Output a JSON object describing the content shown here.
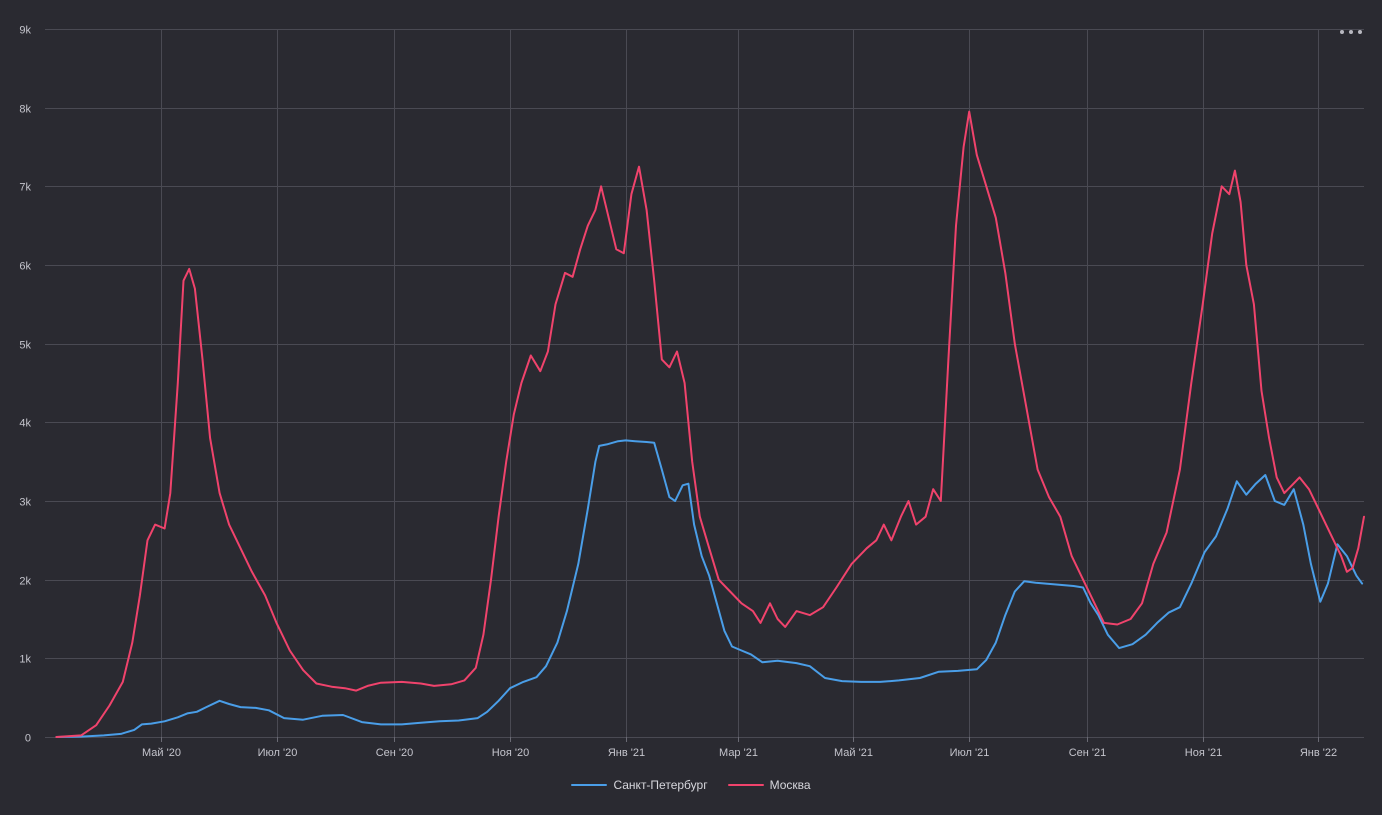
{
  "menu": {
    "icon": "more-horizontal-icon"
  },
  "chart_data": {
    "type": "line",
    "title": "",
    "xlabel": "",
    "ylabel": "",
    "ylim": [
      0,
      9000
    ],
    "yticks": [
      0,
      1000,
      2000,
      3000,
      4000,
      5000,
      6000,
      7000,
      8000,
      9000
    ],
    "ytick_labels": [
      "0",
      "1k",
      "2k",
      "3k",
      "4k",
      "5k",
      "6k",
      "7k",
      "8k",
      "9k"
    ],
    "xlim": [
      "2020-03-01",
      "2022-01-25"
    ],
    "xticks": [
      {
        "date": "2020-05-01",
        "label": "Май '20"
      },
      {
        "date": "2020-07-01",
        "label": "Июл '20"
      },
      {
        "date": "2020-09-01",
        "label": "Сен '20"
      },
      {
        "date": "2020-11-01",
        "label": "Ноя '20"
      },
      {
        "date": "2021-01-01",
        "label": "Янв '21"
      },
      {
        "date": "2021-03-01",
        "label": "Мар '21"
      },
      {
        "date": "2021-05-01",
        "label": "Май '21"
      },
      {
        "date": "2021-07-01",
        "label": "Июл '21"
      },
      {
        "date": "2021-09-01",
        "label": "Сен '21"
      },
      {
        "date": "2021-11-01",
        "label": "Ноя '21"
      },
      {
        "date": "2022-01-01",
        "label": "Янв '22"
      }
    ],
    "grid": true,
    "legend_position": "bottom-center",
    "series": [
      {
        "name": "Санкт-Петербург",
        "color": "#4a9ee8",
        "points": [
          [
            "2020-03-07",
            0
          ],
          [
            "2020-03-20",
            5
          ],
          [
            "2020-04-01",
            20
          ],
          [
            "2020-04-10",
            40
          ],
          [
            "2020-04-17",
            90
          ],
          [
            "2020-04-21",
            160
          ],
          [
            "2020-04-26",
            170
          ],
          [
            "2020-05-03",
            200
          ],
          [
            "2020-05-10",
            250
          ],
          [
            "2020-05-15",
            300
          ],
          [
            "2020-05-20",
            320
          ],
          [
            "2020-05-25",
            380
          ],
          [
            "2020-06-01",
            460
          ],
          [
            "2020-06-06",
            420
          ],
          [
            "2020-06-12",
            380
          ],
          [
            "2020-06-20",
            370
          ],
          [
            "2020-06-27",
            340
          ],
          [
            "2020-07-05",
            240
          ],
          [
            "2020-07-15",
            220
          ],
          [
            "2020-07-25",
            270
          ],
          [
            "2020-08-05",
            280
          ],
          [
            "2020-08-15",
            190
          ],
          [
            "2020-08-25",
            160
          ],
          [
            "2020-09-05",
            160
          ],
          [
            "2020-09-15",
            180
          ],
          [
            "2020-09-25",
            200
          ],
          [
            "2020-10-05",
            210
          ],
          [
            "2020-10-15",
            240
          ],
          [
            "2020-10-20",
            320
          ],
          [
            "2020-10-26",
            460
          ],
          [
            "2020-11-01",
            620
          ],
          [
            "2020-11-08",
            700
          ],
          [
            "2020-11-15",
            760
          ],
          [
            "2020-11-20",
            900
          ],
          [
            "2020-11-26",
            1200
          ],
          [
            "2020-12-01",
            1600
          ],
          [
            "2020-12-07",
            2200
          ],
          [
            "2020-12-12",
            2900
          ],
          [
            "2020-12-16",
            3500
          ],
          [
            "2020-12-18",
            3700
          ],
          [
            "2020-12-22",
            3720
          ],
          [
            "2020-12-28",
            3760
          ],
          [
            "2021-01-01",
            3770
          ],
          [
            "2021-01-06",
            3760
          ],
          [
            "2021-01-12",
            3750
          ],
          [
            "2021-01-16",
            3740
          ],
          [
            "2021-01-20",
            3400
          ],
          [
            "2021-01-24",
            3050
          ],
          [
            "2021-01-27",
            3000
          ],
          [
            "2021-01-31",
            3200
          ],
          [
            "2021-02-03",
            3220
          ],
          [
            "2021-02-06",
            2700
          ],
          [
            "2021-02-10",
            2300
          ],
          [
            "2021-02-14",
            2050
          ],
          [
            "2021-02-18",
            1700
          ],
          [
            "2021-02-22",
            1350
          ],
          [
            "2021-02-26",
            1150
          ],
          [
            "2021-03-03",
            1100
          ],
          [
            "2021-03-08",
            1050
          ],
          [
            "2021-03-14",
            950
          ],
          [
            "2021-03-22",
            970
          ],
          [
            "2021-04-01",
            940
          ],
          [
            "2021-04-08",
            900
          ],
          [
            "2021-04-16",
            750
          ],
          [
            "2021-04-25",
            710
          ],
          [
            "2021-05-05",
            700
          ],
          [
            "2021-05-15",
            700
          ],
          [
            "2021-05-25",
            720
          ],
          [
            "2021-06-05",
            750
          ],
          [
            "2021-06-15",
            830
          ],
          [
            "2021-06-25",
            840
          ],
          [
            "2021-07-05",
            860
          ],
          [
            "2021-07-10",
            980
          ],
          [
            "2021-07-15",
            1200
          ],
          [
            "2021-07-20",
            1550
          ],
          [
            "2021-07-25",
            1850
          ],
          [
            "2021-07-30",
            1980
          ],
          [
            "2021-08-05",
            1960
          ],
          [
            "2021-08-15",
            1940
          ],
          [
            "2021-08-25",
            1920
          ],
          [
            "2021-08-30",
            1900
          ],
          [
            "2021-09-03",
            1700
          ],
          [
            "2021-09-07",
            1550
          ],
          [
            "2021-09-12",
            1300
          ],
          [
            "2021-09-18",
            1130
          ],
          [
            "2021-09-25",
            1180
          ],
          [
            "2021-10-02",
            1300
          ],
          [
            "2021-10-08",
            1450
          ],
          [
            "2021-10-14",
            1580
          ],
          [
            "2021-10-20",
            1650
          ],
          [
            "2021-10-26",
            1950
          ],
          [
            "2021-11-02",
            2350
          ],
          [
            "2021-11-08",
            2550
          ],
          [
            "2021-11-14",
            2900
          ],
          [
            "2021-11-19",
            3250
          ],
          [
            "2021-11-24",
            3080
          ],
          [
            "2021-11-29",
            3220
          ],
          [
            "2021-12-04",
            3330
          ],
          [
            "2021-12-09",
            3000
          ],
          [
            "2021-12-14",
            2950
          ],
          [
            "2021-12-19",
            3150
          ],
          [
            "2021-12-24",
            2700
          ],
          [
            "2021-12-28",
            2200
          ],
          [
            "2022-01-02",
            1720
          ],
          [
            "2022-01-06",
            1950
          ],
          [
            "2022-01-11",
            2450
          ],
          [
            "2022-01-16",
            2300
          ],
          [
            "2022-01-21",
            2050
          ],
          [
            "2022-01-24",
            1950
          ]
        ]
      },
      {
        "name": "Москва",
        "color": "#f0436c",
        "points": [
          [
            "2020-03-07",
            0
          ],
          [
            "2020-03-20",
            20
          ],
          [
            "2020-03-28",
            150
          ],
          [
            "2020-04-04",
            400
          ],
          [
            "2020-04-11",
            700
          ],
          [
            "2020-04-16",
            1200
          ],
          [
            "2020-04-20",
            1800
          ],
          [
            "2020-04-24",
            2500
          ],
          [
            "2020-04-28",
            2700
          ],
          [
            "2020-05-03",
            2650
          ],
          [
            "2020-05-06",
            3100
          ],
          [
            "2020-05-10",
            4500
          ],
          [
            "2020-05-13",
            5800
          ],
          [
            "2020-05-16",
            5950
          ],
          [
            "2020-05-19",
            5700
          ],
          [
            "2020-05-23",
            4800
          ],
          [
            "2020-05-27",
            3800
          ],
          [
            "2020-06-01",
            3100
          ],
          [
            "2020-06-06",
            2700
          ],
          [
            "2020-06-12",
            2400
          ],
          [
            "2020-06-18",
            2100
          ],
          [
            "2020-06-25",
            1800
          ],
          [
            "2020-07-01",
            1450
          ],
          [
            "2020-07-08",
            1100
          ],
          [
            "2020-07-15",
            850
          ],
          [
            "2020-07-22",
            680
          ],
          [
            "2020-07-30",
            640
          ],
          [
            "2020-08-06",
            620
          ],
          [
            "2020-08-12",
            590
          ],
          [
            "2020-08-18",
            650
          ],
          [
            "2020-08-25",
            690
          ],
          [
            "2020-09-05",
            700
          ],
          [
            "2020-09-15",
            680
          ],
          [
            "2020-09-22",
            650
          ],
          [
            "2020-10-01",
            670
          ],
          [
            "2020-10-08",
            720
          ],
          [
            "2020-10-14",
            880
          ],
          [
            "2020-10-18",
            1300
          ],
          [
            "2020-10-22",
            2000
          ],
          [
            "2020-10-26",
            2800
          ],
          [
            "2020-10-30",
            3500
          ],
          [
            "2020-11-03",
            4100
          ],
          [
            "2020-11-07",
            4500
          ],
          [
            "2020-11-12",
            4850
          ],
          [
            "2020-11-17",
            4650
          ],
          [
            "2020-11-21",
            4900
          ],
          [
            "2020-11-25",
            5500
          ],
          [
            "2020-11-30",
            5900
          ],
          [
            "2020-12-04",
            5850
          ],
          [
            "2020-12-08",
            6200
          ],
          [
            "2020-12-12",
            6500
          ],
          [
            "2020-12-16",
            6700
          ],
          [
            "2020-12-19",
            7000
          ],
          [
            "2020-12-23",
            6600
          ],
          [
            "2020-12-27",
            6200
          ],
          [
            "2020-12-31",
            6150
          ],
          [
            "2021-01-04",
            6900
          ],
          [
            "2021-01-08",
            7250
          ],
          [
            "2021-01-12",
            6700
          ],
          [
            "2021-01-16",
            5800
          ],
          [
            "2021-01-20",
            4800
          ],
          [
            "2021-01-24",
            4700
          ],
          [
            "2021-01-28",
            4900
          ],
          [
            "2021-02-01",
            4500
          ],
          [
            "2021-02-05",
            3500
          ],
          [
            "2021-02-09",
            2800
          ],
          [
            "2021-02-14",
            2400
          ],
          [
            "2021-02-19",
            2000
          ],
          [
            "2021-02-25",
            1850
          ],
          [
            "2021-03-03",
            1700
          ],
          [
            "2021-03-09",
            1600
          ],
          [
            "2021-03-13",
            1450
          ],
          [
            "2021-03-18",
            1700
          ],
          [
            "2021-03-22",
            1500
          ],
          [
            "2021-03-26",
            1400
          ],
          [
            "2021-04-01",
            1600
          ],
          [
            "2021-04-08",
            1550
          ],
          [
            "2021-04-15",
            1650
          ],
          [
            "2021-04-22",
            1900
          ],
          [
            "2021-04-30",
            2200
          ],
          [
            "2021-05-08",
            2400
          ],
          [
            "2021-05-13",
            2500
          ],
          [
            "2021-05-17",
            2700
          ],
          [
            "2021-05-21",
            2500
          ],
          [
            "2021-05-26",
            2800
          ],
          [
            "2021-05-30",
            3000
          ],
          [
            "2021-06-03",
            2700
          ],
          [
            "2021-06-08",
            2800
          ],
          [
            "2021-06-12",
            3150
          ],
          [
            "2021-06-16",
            3000
          ],
          [
            "2021-06-20",
            4800
          ],
          [
            "2021-06-24",
            6500
          ],
          [
            "2021-06-28",
            7500
          ],
          [
            "2021-07-01",
            7950
          ],
          [
            "2021-07-05",
            7400
          ],
          [
            "2021-07-10",
            7000
          ],
          [
            "2021-07-15",
            6600
          ],
          [
            "2021-07-20",
            5900
          ],
          [
            "2021-07-25",
            5000
          ],
          [
            "2021-07-31",
            4200
          ],
          [
            "2021-08-06",
            3400
          ],
          [
            "2021-08-12",
            3050
          ],
          [
            "2021-08-18",
            2800
          ],
          [
            "2021-08-24",
            2300
          ],
          [
            "2021-08-30",
            2000
          ],
          [
            "2021-09-05",
            1700
          ],
          [
            "2021-09-10",
            1450
          ],
          [
            "2021-09-17",
            1430
          ],
          [
            "2021-09-24",
            1500
          ],
          [
            "2021-09-30",
            1700
          ],
          [
            "2021-10-06",
            2200
          ],
          [
            "2021-10-13",
            2600
          ],
          [
            "2021-10-20",
            3400
          ],
          [
            "2021-10-26",
            4500
          ],
          [
            "2021-11-01",
            5500
          ],
          [
            "2021-11-06",
            6400
          ],
          [
            "2021-11-11",
            7000
          ],
          [
            "2021-11-15",
            6900
          ],
          [
            "2021-11-18",
            7200
          ],
          [
            "2021-11-21",
            6800
          ],
          [
            "2021-11-24",
            6000
          ],
          [
            "2021-11-28",
            5500
          ],
          [
            "2021-12-02",
            4400
          ],
          [
            "2021-12-06",
            3800
          ],
          [
            "2021-12-10",
            3300
          ],
          [
            "2021-12-14",
            3100
          ],
          [
            "2021-12-18",
            3200
          ],
          [
            "2021-12-22",
            3300
          ],
          [
            "2021-12-27",
            3150
          ],
          [
            "2021-12-31",
            2950
          ],
          [
            "2022-01-05",
            2700
          ],
          [
            "2022-01-09",
            2500
          ],
          [
            "2022-01-13",
            2300
          ],
          [
            "2022-01-16",
            2100
          ],
          [
            "2022-01-19",
            2150
          ],
          [
            "2022-01-22",
            2400
          ],
          [
            "2022-01-25",
            2800
          ]
        ]
      }
    ]
  }
}
